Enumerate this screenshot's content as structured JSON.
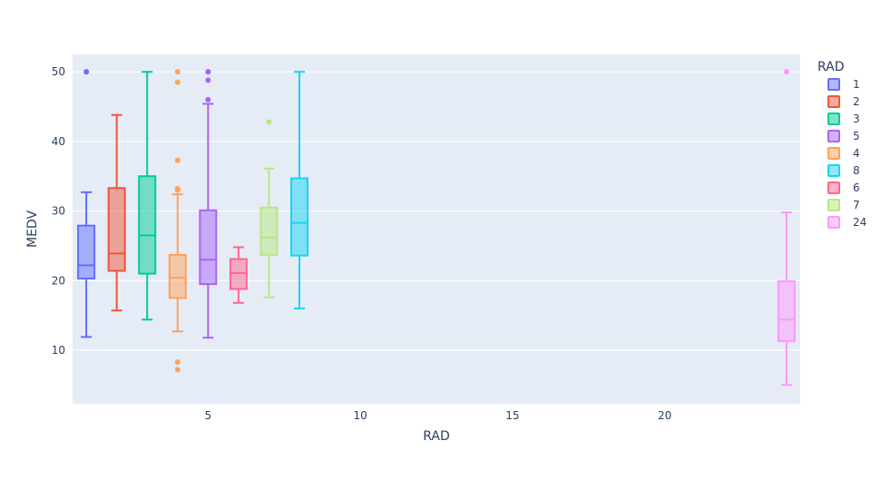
{
  "chart_data": {
    "type": "box",
    "title": "",
    "xlabel": "RAD",
    "ylabel": "MEDV",
    "xlim": [
      0.55,
      24.45
    ],
    "ylim": [
      2.3,
      52.5
    ],
    "x_ticks": [
      5,
      10,
      15,
      20
    ],
    "y_ticks": [
      10,
      20,
      30,
      40,
      50
    ],
    "grid": "y-only",
    "legend": {
      "title": "RAD",
      "placement": "right"
    },
    "series": [
      {
        "name": "1",
        "x": 1,
        "color": "#636efa",
        "min": 11.9,
        "q1": 20.3,
        "median": 22.2,
        "q3": 27.9,
        "max": 32.7,
        "outliers": [
          50.0
        ]
      },
      {
        "name": "2",
        "x": 2,
        "color": "#EF553B",
        "min": 15.7,
        "q1": 21.4,
        "median": 23.9,
        "q3": 33.3,
        "max": 43.8,
        "outliers": []
      },
      {
        "name": "3",
        "x": 3,
        "color": "#00cc96",
        "min": 14.4,
        "q1": 21.0,
        "median": 26.5,
        "q3": 35.0,
        "max": 50.0,
        "outliers": []
      },
      {
        "name": "5",
        "x": 5,
        "color": "#ab63fa",
        "min": 11.8,
        "q1": 19.5,
        "median": 23.0,
        "q3": 30.1,
        "max": 45.4,
        "outliers": [
          50.0,
          50.0,
          48.8,
          46.0
        ]
      },
      {
        "name": "4",
        "x": 4,
        "color": "#FFA15A",
        "min": 12.7,
        "q1": 17.5,
        "median": 20.4,
        "q3": 23.7,
        "max": 32.4,
        "outliers": [
          50.0,
          48.5,
          37.3,
          33.2,
          33.0,
          8.3,
          7.2
        ]
      },
      {
        "name": "8",
        "x": 8,
        "color": "#19d3f3",
        "min": 16.0,
        "q1": 23.6,
        "median": 28.3,
        "q3": 34.7,
        "max": 50.0,
        "outliers": []
      },
      {
        "name": "6",
        "x": 6,
        "color": "#FF6692",
        "min": 16.8,
        "q1": 18.8,
        "median": 21.1,
        "q3": 23.1,
        "max": 24.8,
        "outliers": []
      },
      {
        "name": "7",
        "x": 7,
        "color": "#B6E880",
        "min": 17.6,
        "q1": 23.7,
        "median": 26.2,
        "q3": 30.5,
        "max": 36.1,
        "outliers": [
          42.8
        ]
      },
      {
        "name": "24",
        "x": 24,
        "color": "#FF97FF",
        "min": 5.0,
        "q1": 11.3,
        "median": 14.4,
        "q3": 19.9,
        "max": 29.8,
        "outliers": [
          50.0
        ]
      }
    ]
  }
}
